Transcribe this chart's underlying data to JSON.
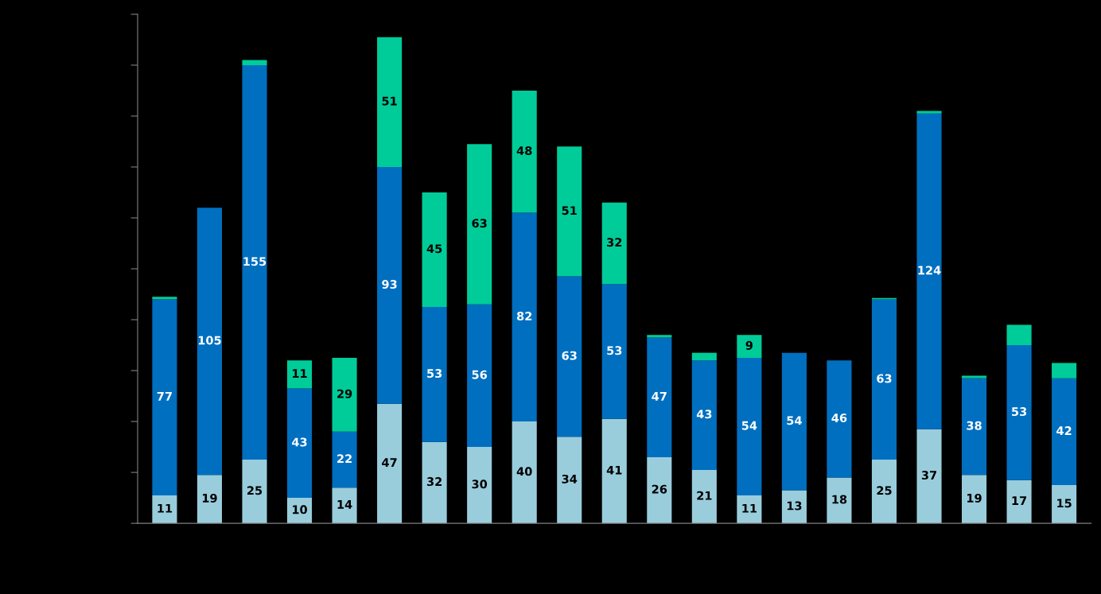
{
  "chart_data": {
    "type": "bar",
    "stacked": true,
    "categories": [
      null,
      null,
      null,
      null,
      null,
      null,
      null,
      null,
      null,
      null,
      null,
      null,
      null,
      null,
      null,
      null,
      null,
      null,
      null,
      null,
      null
    ],
    "series": [
      {
        "color": "#99cddc",
        "values": [
          11,
          19,
          25,
          10,
          14,
          47,
          32,
          30,
          40,
          34,
          41,
          26,
          21,
          11,
          13,
          18,
          25,
          37,
          19,
          17,
          15
        ],
        "value_labels": [
          "11",
          "19",
          "25",
          "10",
          "14",
          "47",
          "32",
          "30",
          "40",
          "34",
          "41",
          "26",
          "21",
          "11",
          "13",
          "18",
          "25",
          "37",
          "19",
          "17",
          "15"
        ]
      },
      {
        "color": "#006fc0",
        "values": [
          77,
          105,
          155,
          43,
          22,
          93,
          53,
          56,
          82,
          63,
          53,
          47,
          43,
          54,
          54,
          46,
          63,
          124,
          38,
          53,
          42
        ],
        "value_labels": [
          "77",
          "105",
          "155",
          "43",
          "22",
          "93",
          "53",
          "56",
          "82",
          "63",
          "53",
          "47",
          "43",
          "54",
          "54",
          "46",
          "63",
          "124",
          "38",
          "53",
          "42"
        ]
      },
      {
        "color": "#00cc99",
        "values": [
          1,
          null,
          2,
          11,
          29,
          51,
          45,
          63,
          48,
          51,
          32,
          1,
          3,
          9,
          null,
          null,
          0.5,
          1,
          1,
          8,
          6
        ],
        "value_labels": [
          null,
          null,
          null,
          "11",
          "29",
          "51",
          "45",
          "63",
          "48",
          "51",
          "32",
          null,
          null,
          "9",
          null,
          null,
          null,
          null,
          null,
          null,
          null
        ]
      }
    ],
    "ylim": [
      0,
      200
    ],
    "yticks": [
      {
        "value": 0,
        "label": null
      },
      {
        "value": 20,
        "label": null
      },
      {
        "value": 40,
        "label": null
      },
      {
        "value": 60,
        "label": null
      },
      {
        "value": 80,
        "label": null
      },
      {
        "value": 100,
        "label": null
      },
      {
        "value": 120,
        "label": null
      },
      {
        "value": 140,
        "label": null
      },
      {
        "value": 160,
        "label": null
      },
      {
        "value": 180,
        "label": null
      },
      {
        "value": 200,
        "label": null
      }
    ],
    "grid": false
  }
}
